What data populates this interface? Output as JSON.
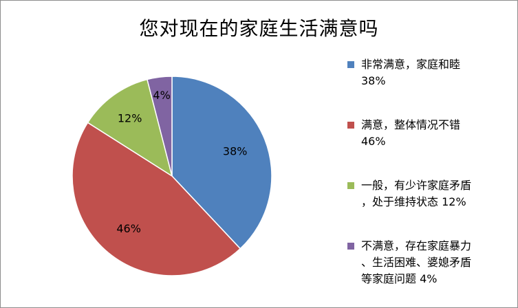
{
  "chart_data": {
    "type": "pie",
    "title": "您对现在的家庭生活满意吗",
    "slices": [
      {
        "name": "非常满意，家庭和睦",
        "legend": "非常满意，家庭和睦\n38%",
        "value": 38,
        "label": "38%",
        "color": "#4f81bd"
      },
      {
        "name": "满意，整体情况不错",
        "legend": "满意，整体情况不错\n46%",
        "value": 46,
        "label": "46%",
        "color": "#c0504d"
      },
      {
        "name": "一般，有少许家庭矛盾，处于维持状态",
        "legend": "一般，有少许家庭矛盾\n，处于维持状态 12%",
        "value": 12,
        "label": "12%",
        "color": "#9bbb59"
      },
      {
        "name": "不满意，存在家庭暴力、生活困难、婆媳矛盾等家庭问题",
        "legend": "不满意，存在家庭暴力\n、生活困难、婆媳矛盾\n等家庭问题 4%",
        "value": 4,
        "label": "4%",
        "color": "#8064a2"
      }
    ],
    "legend_position": "right"
  }
}
